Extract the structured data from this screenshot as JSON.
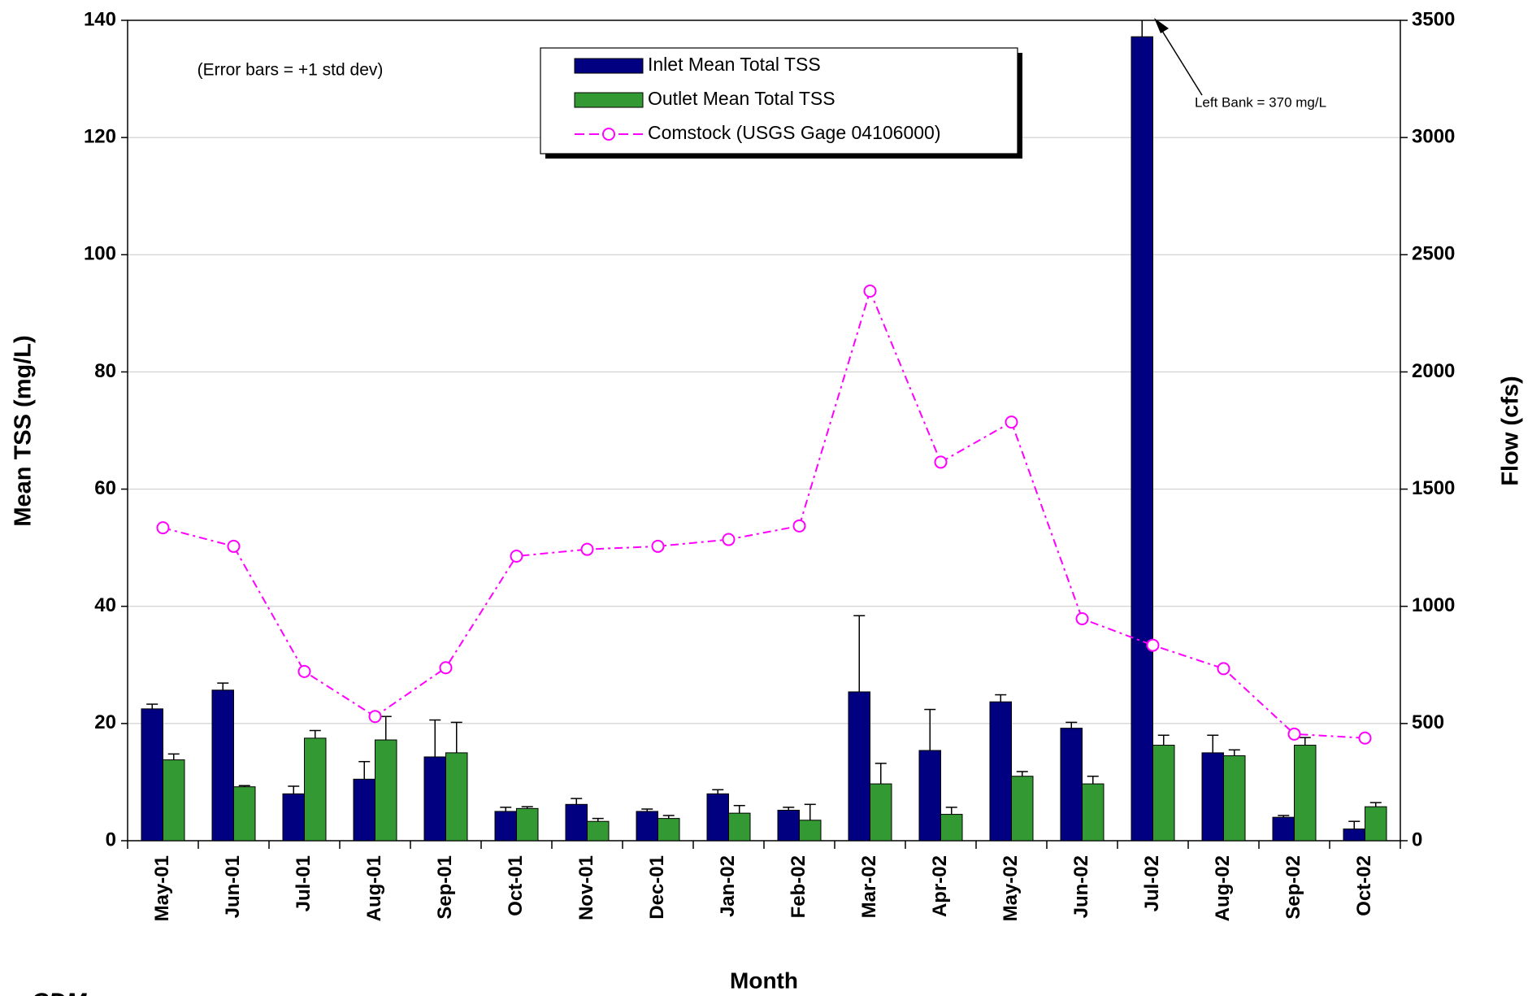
{
  "chart_data": {
    "type": "bar",
    "annotations": [
      "(Error bars = +1 std dev)",
      "Left Bank = 370 mg/L"
    ],
    "logo": "CDM",
    "x_label": "Month",
    "y_label": "Mean TSS (mg/L)",
    "y2_label": "Flow (cfs)",
    "categories": [
      "May-01",
      "Jun-01",
      "Jul-01",
      "Aug-01",
      "Sep-01",
      "Oct-01",
      "Nov-01",
      "Dec-01",
      "Jan-02",
      "Feb-02",
      "Mar-02",
      "Apr-02",
      "May-02",
      "Jun-02",
      "Jul-02",
      "Aug-02",
      "Sep-02",
      "Oct-02"
    ],
    "series": [
      {
        "name": "Inlet Mean Total TSS",
        "type": "bar",
        "color": "#000080",
        "values": [
          22.5,
          25.7,
          8.0,
          10.5,
          14.3,
          5.0,
          6.2,
          5.0,
          8.0,
          5.2,
          25.4,
          15.4,
          23.7,
          19.2,
          137.2,
          15.0,
          4.0,
          2.0
        ],
        "errors": [
          0.8,
          1.2,
          1.3,
          3.0,
          6.3,
          0.7,
          1.0,
          0.4,
          0.7,
          0.5,
          13.0,
          7.0,
          1.2,
          1.0,
          10.0,
          3.0,
          0.3,
          1.3
        ]
      },
      {
        "name": "Outlet Mean Total TSS",
        "type": "bar",
        "color": "#339933",
        "values": [
          13.8,
          9.2,
          17.5,
          17.2,
          15.0,
          5.5,
          3.3,
          3.8,
          4.7,
          3.5,
          9.7,
          4.5,
          11.0,
          9.7,
          16.3,
          14.5,
          16.3,
          5.8
        ],
        "errors": [
          1.0,
          0.2,
          1.3,
          4.0,
          5.2,
          0.3,
          0.5,
          0.5,
          1.3,
          2.7,
          3.5,
          1.2,
          0.8,
          1.3,
          1.7,
          1.0,
          1.3,
          0.7
        ]
      },
      {
        "name": "Comstock (USGS Gage 04106000)",
        "type": "line",
        "axis": "y2",
        "color": "#ff00ff",
        "values": [
          1335,
          1256,
          722,
          530,
          738,
          1214,
          1243,
          1256,
          1285,
          1343,
          2345,
          1615,
          1786,
          947,
          834,
          734,
          455,
          438
        ]
      }
    ],
    "ylim": [
      0,
      140
    ],
    "yticks": [
      0,
      20,
      40,
      60,
      80,
      100,
      120,
      140
    ],
    "y2lim": [
      0,
      3500
    ],
    "y2ticks": [
      0,
      500,
      1000,
      1500,
      2000,
      2500,
      3000,
      3500
    ],
    "grid": true
  }
}
